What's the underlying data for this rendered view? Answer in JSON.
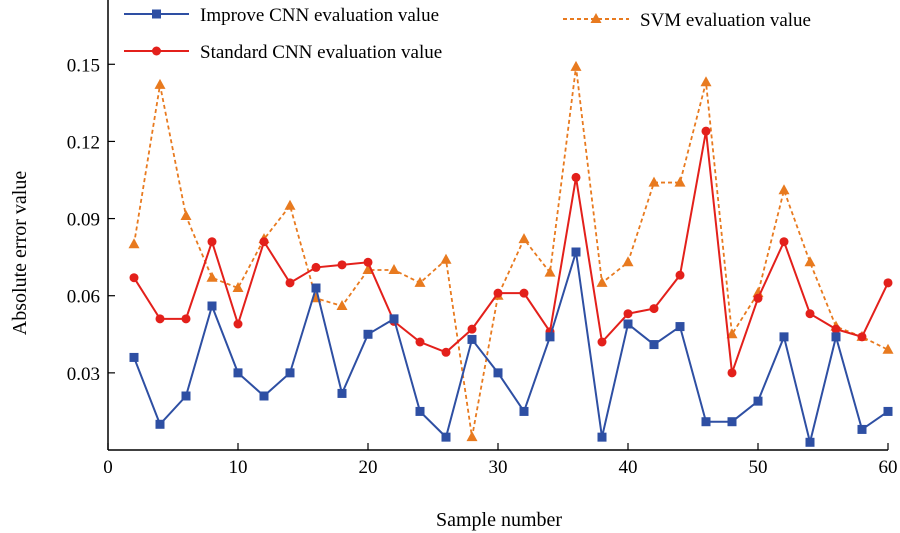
{
  "chart_data": {
    "type": "line",
    "xlabel": "Sample number",
    "ylabel": "Absolute error value",
    "xlim": [
      0,
      60
    ],
    "ylim": [
      0,
      0.175
    ],
    "xticks": [
      0,
      10,
      20,
      30,
      40,
      50,
      60
    ],
    "yticks": [
      0.03,
      0.06,
      0.09,
      0.12,
      0.15
    ],
    "ytick_labels": [
      "0.03",
      "0.06",
      "0.09",
      "0.12",
      "0.15"
    ],
    "grid": false,
    "legend_position": "top",
    "x": [
      2,
      4,
      6,
      8,
      10,
      12,
      14,
      16,
      18,
      20,
      22,
      24,
      26,
      28,
      30,
      32,
      34,
      36,
      38,
      40,
      42,
      44,
      46,
      48,
      50,
      52,
      54,
      56,
      58,
      60
    ],
    "series": [
      {
        "name": "Improve CNN evaluation value",
        "color": "#2e4fa3",
        "marker": "square",
        "dash": "solid",
        "values": [
          0.036,
          0.01,
          0.021,
          0.056,
          0.03,
          0.021,
          0.03,
          0.063,
          0.022,
          0.045,
          0.051,
          0.015,
          0.005,
          0.043,
          0.03,
          0.015,
          0.044,
          0.077,
          0.005,
          0.049,
          0.041,
          0.048,
          0.011,
          0.011,
          0.019,
          0.044,
          0.003,
          0.044,
          0.008,
          0.015
        ]
      },
      {
        "name": "Standard CNN evaluation value",
        "color": "#e3201b",
        "marker": "circle",
        "dash": "solid",
        "values": [
          0.067,
          0.051,
          0.051,
          0.081,
          0.049,
          0.081,
          0.065,
          0.071,
          0.072,
          0.073,
          0.05,
          0.042,
          0.038,
          0.047,
          0.061,
          0.061,
          0.046,
          0.106,
          0.042,
          0.053,
          0.055,
          0.068,
          0.124,
          0.03,
          0.059,
          0.081,
          0.053,
          0.047,
          0.044,
          0.065
        ]
      },
      {
        "name": "SVM evaluation value",
        "color": "#e87a1f",
        "marker": "triangle",
        "dash": "dashed",
        "values": [
          0.08,
          0.142,
          0.091,
          0.067,
          0.063,
          0.082,
          0.095,
          0.059,
          0.056,
          0.07,
          0.07,
          0.065,
          0.074,
          0.005,
          0.06,
          0.082,
          0.069,
          0.149,
          0.065,
          0.073,
          0.104,
          0.104,
          0.143,
          0.045,
          0.061,
          0.101,
          0.073,
          0.048,
          0.044,
          0.039
        ]
      }
    ]
  }
}
